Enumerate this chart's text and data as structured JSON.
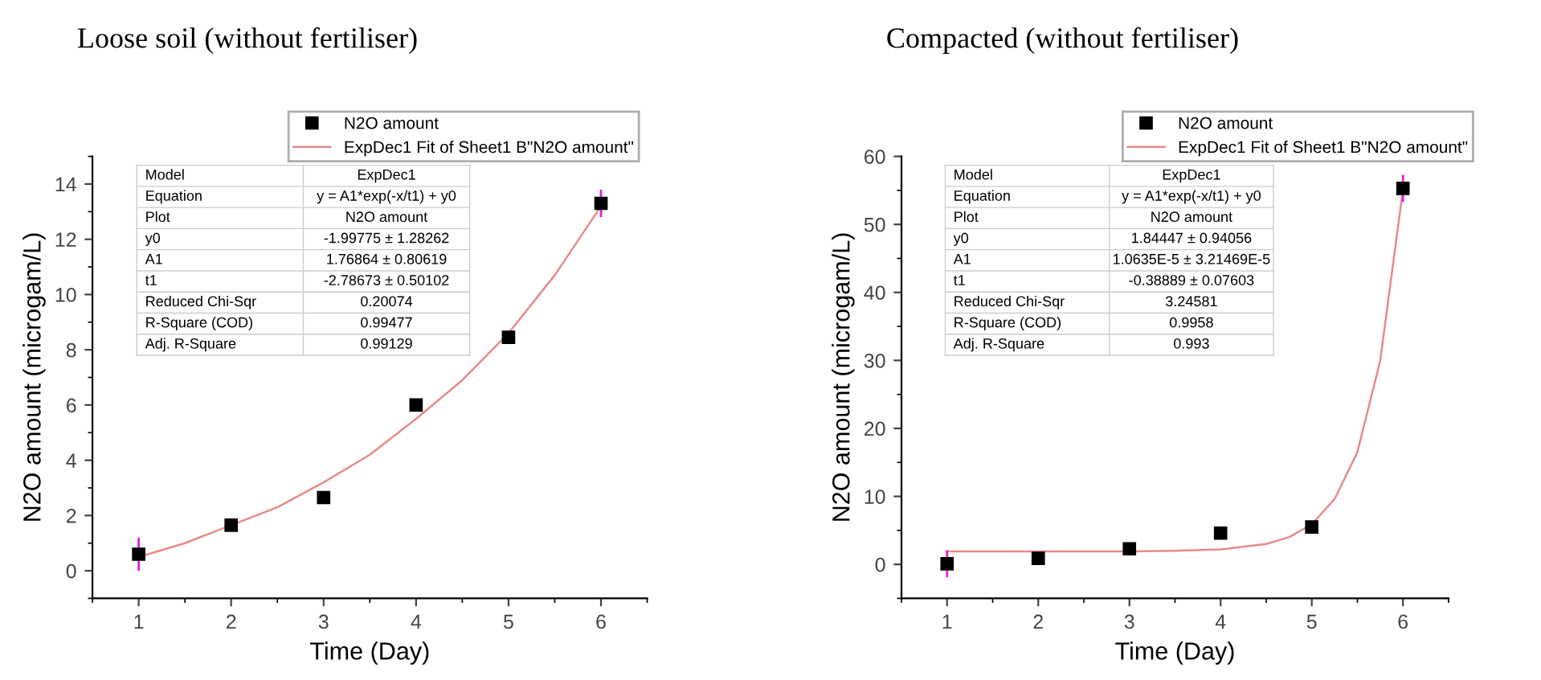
{
  "chart_data": [
    {
      "type": "scatter",
      "title": "Loose soil (without fertiliser)",
      "xlabel": "Time (Day)",
      "ylabel": "N2O amount (microgam/L)",
      "x": [
        1,
        2,
        3,
        4,
        5,
        6
      ],
      "xlim": [
        0.5,
        6.5
      ],
      "xticks": [
        1,
        2,
        3,
        4,
        5,
        6
      ],
      "ylim": [
        -1,
        15
      ],
      "yticks": [
        0,
        2,
        4,
        6,
        8,
        10,
        12,
        14
      ],
      "legend": "top right",
      "grid": false,
      "series": [
        {
          "name": "N2O amount",
          "color": "#000000",
          "marker": "square",
          "values": [
            0.6,
            1.65,
            2.65,
            6.0,
            8.45,
            13.3
          ],
          "errors": [
            0.6,
            null,
            null,
            null,
            null,
            0.5
          ]
        },
        {
          "type": "line",
          "name": "ExpDec1 Fit of Sheet1 B\"N2O amount\"",
          "color": "#e88a8a",
          "line_style": "solid",
          "x": [
            1,
            1.5,
            2,
            2.5,
            3,
            3.5,
            4,
            4.5,
            5,
            5.5,
            6
          ],
          "values": [
            0.5,
            1.0,
            1.65,
            2.3,
            3.2,
            4.2,
            5.5,
            6.9,
            8.6,
            10.7,
            13.2
          ]
        }
      ],
      "annotations": [
        "Model",
        "ExpDec1",
        "Equation",
        "y = A1*exp(-x/t1) + y0",
        "Plot",
        "N2O amount",
        "y0",
        "-1.99775 ± 1.28262",
        "A1",
        "1.76864 ± 0.80619",
        "t1",
        "-2.78673 ± 0.50102",
        "Reduced Chi-Sqr",
        "0.20074",
        "R-Square (COD)",
        "0.99477",
        "Adj. R-Square",
        "0.99129"
      ]
    },
    {
      "type": "scatter",
      "title": "Compacted (without fertiliser)",
      "xlabel": "Time (Day)",
      "ylabel": "N2O amount (microgam/L)",
      "x": [
        1,
        2,
        3,
        4,
        5,
        6
      ],
      "xlim": [
        0.5,
        6.5
      ],
      "xticks": [
        1,
        2,
        3,
        4,
        5,
        6
      ],
      "ylim": [
        -5,
        60
      ],
      "yticks": [
        0,
        10,
        20,
        30,
        40,
        50,
        60
      ],
      "legend": "top right",
      "grid": false,
      "series": [
        {
          "name": "N2O amount",
          "color": "#000000",
          "marker": "square",
          "values": [
            0.1,
            0.9,
            2.3,
            4.6,
            5.5,
            55.3
          ],
          "errors": [
            2.0,
            null,
            null,
            null,
            null,
            2.0
          ]
        },
        {
          "type": "line",
          "name": "ExpDec1 Fit of Sheet1 B\"N2O amount\"",
          "color": "#e88a8a",
          "line_style": "solid",
          "x": [
            1,
            2,
            3,
            3.5,
            4,
            4.5,
            4.75,
            5,
            5.25,
            5.5,
            5.75,
            6
          ],
          "values": [
            1.9,
            1.9,
            1.9,
            2.0,
            2.2,
            3.0,
            4.0,
            5.9,
            9.6,
            16.5,
            29.9,
            55.1
          ]
        }
      ],
      "annotations": [
        "Model",
        "ExpDec1",
        "Equation",
        "y = A1*exp(-x/t1) + y0",
        "Plot",
        "N2O amount",
        "y0",
        "1.84447 ± 0.94056",
        "A1",
        "1.0635E-5 ± 3.21469E-5",
        "t1",
        "-0.38889 ± 0.07603",
        "Reduced Chi-Sqr",
        "3.24581",
        "R-Square (COD)",
        "0.9958",
        "Adj. R-Square",
        "0.993"
      ]
    }
  ]
}
